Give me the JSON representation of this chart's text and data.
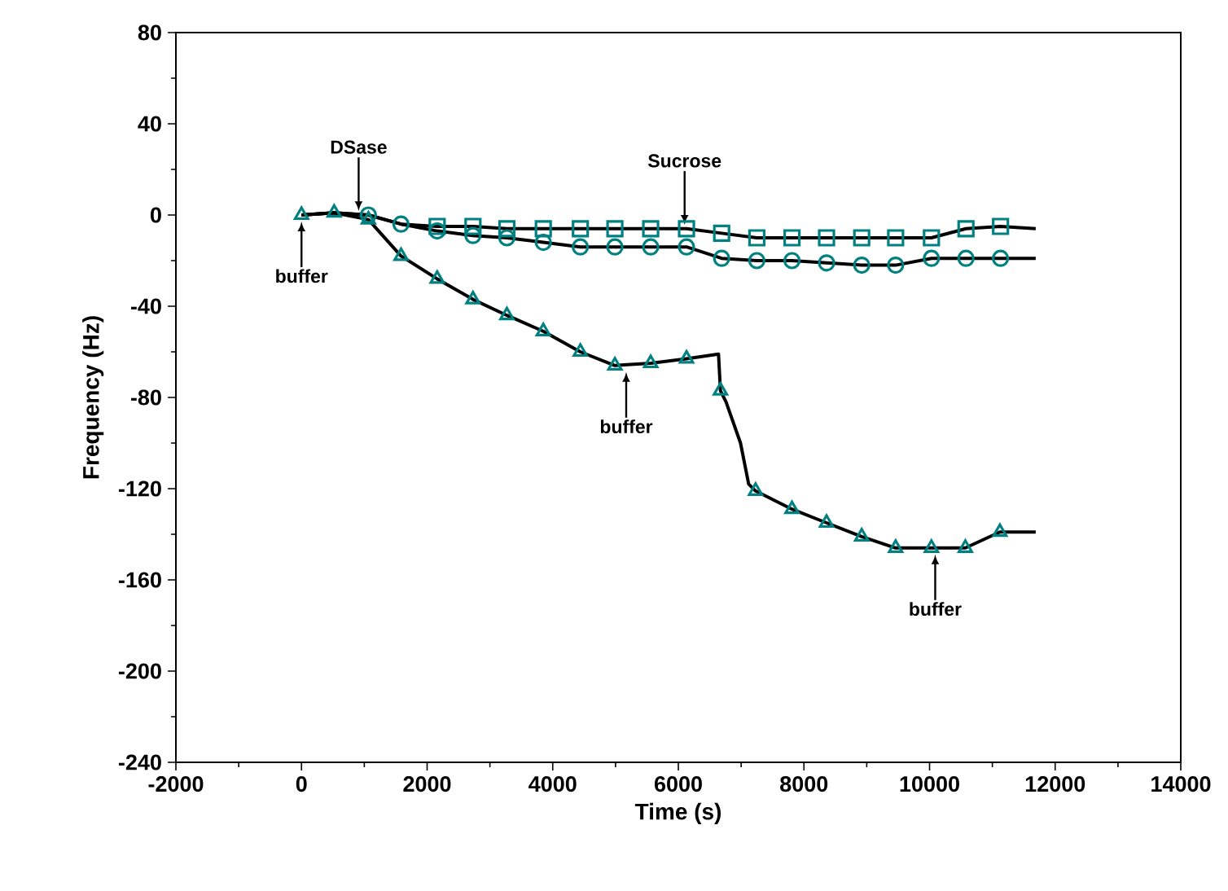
{
  "chart_data": {
    "type": "line",
    "xlabel": "Time (s)",
    "ylabel": "Frequency (Hz)",
    "xlim": [
      -2000,
      14000
    ],
    "xticks": [
      -2000,
      0,
      2000,
      4000,
      6000,
      8000,
      10000,
      12000,
      14000
    ],
    "ylim": [
      -240,
      80
    ],
    "yticks": [
      -240,
      -200,
      -160,
      -120,
      -80,
      -40,
      0,
      40,
      80
    ],
    "series": [
      {
        "color": "#000000",
        "marker": "none",
        "line_style": "solid",
        "x": [
          0,
          520,
          1065,
          1585,
          2160,
          2730,
          3270,
          3850,
          4440,
          4990,
          5560,
          6130,
          6690,
          7250,
          7810,
          8360,
          8920,
          9460,
          10030,
          10580,
          11130,
          11690
        ],
        "values": [
          0,
          1,
          0,
          -4,
          -5,
          -5,
          -6,
          -6,
          -6,
          -6,
          -6,
          -6,
          -8,
          -10,
          -10,
          -10,
          -10,
          -10,
          -10,
          -6,
          -5,
          -6
        ]
      },
      {
        "color": "#000000",
        "marker": "none",
        "line_style": "solid",
        "x": [
          0,
          520,
          1065,
          1585,
          2160,
          2730,
          3270,
          3850,
          4440,
          4990,
          5560,
          6130,
          6690,
          7250,
          7810,
          8360,
          8920,
          9460,
          10030,
          10580,
          11130,
          11690
        ],
        "values": [
          0,
          1,
          0,
          -4,
          -7,
          -9,
          -10,
          -12,
          -14,
          -14,
          -14,
          -14,
          -19,
          -20,
          -20,
          -21,
          -22,
          -22,
          -19,
          -19,
          -19,
          -19
        ]
      },
      {
        "color": "#000000",
        "marker": "none",
        "line_style": "solid",
        "x": [
          0,
          520,
          1065,
          1585,
          2160,
          2730,
          3270,
          3850,
          4440,
          4990,
          5560,
          6130,
          6640,
          6670,
          6760,
          6990,
          7120,
          7230,
          7810,
          8360,
          8920,
          9460,
          10030,
          10570,
          11120,
          11690
        ],
        "values": [
          0,
          1,
          -2,
          -18,
          -28,
          -37,
          -44,
          -51,
          -60,
          -66,
          -65,
          -63,
          -61,
          -77,
          -82,
          -100,
          -118,
          -121,
          -129,
          -135,
          -141,
          -146,
          -146,
          -146,
          -139,
          -139
        ]
      },
      {
        "type": "scatter",
        "color": "#008080",
        "marker": "square",
        "x": [
          2160,
          2730,
          3270,
          3850,
          4440,
          4990,
          5560,
          6130,
          6690,
          7250,
          7810,
          8360,
          8920,
          9460,
          10030,
          10580,
          11130
        ],
        "values": [
          -5,
          -5,
          -6,
          -6,
          -6,
          -6,
          -6,
          -6,
          -8,
          -10,
          -10,
          -10,
          -10,
          -10,
          -10,
          -6,
          -5
        ]
      },
      {
        "type": "scatter",
        "color": "#008080",
        "marker": "circle",
        "x": [
          1065,
          1585,
          2160,
          2730,
          3270,
          3850,
          4440,
          4990,
          5560,
          6130,
          6690,
          7250,
          7810,
          8360,
          8920,
          9460,
          10030,
          10580,
          11130
        ],
        "values": [
          0,
          -4,
          -7,
          -9,
          -10,
          -12,
          -14,
          -14,
          -14,
          -14,
          -19,
          -20,
          -20,
          -21,
          -22,
          -22,
          -19,
          -19,
          -19
        ]
      },
      {
        "type": "scatter",
        "color": "#008080",
        "marker": "triangle",
        "x": [
          0,
          520,
          1065,
          1585,
          2160,
          2730,
          3270,
          3850,
          4440,
          4990,
          5560,
          6130,
          6670,
          7230,
          7810,
          8360,
          8920,
          9460,
          10030,
          10570,
          11120
        ],
        "values": [
          0,
          1,
          -2,
          -18,
          -28,
          -37,
          -44,
          -51,
          -60,
          -66,
          -65,
          -63,
          -77,
          -121,
          -129,
          -135,
          -141,
          -146,
          -146,
          -146,
          -139
        ]
      }
    ],
    "annotations": [
      {
        "text": "buffer",
        "x": 0,
        "y": 0
      },
      {
        "text": "DSase",
        "x": 910,
        "y": 1
      },
      {
        "text": "Sucrose",
        "x": 6100,
        "y": -5
      },
      {
        "text": "buffer",
        "x": 5170,
        "y": -66
      },
      {
        "text": "buffer",
        "x": 10090,
        "y": -146
      }
    ]
  }
}
